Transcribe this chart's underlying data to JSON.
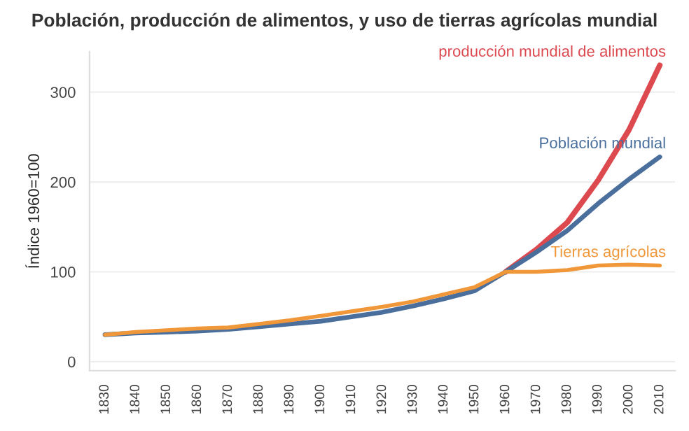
{
  "chart_data": {
    "type": "line",
    "title": "Población, producción de alimentos, y uso de tierras agrícolas mundial",
    "ylabel": "Índice 1960=100",
    "x": [
      1830,
      1840,
      1850,
      1860,
      1870,
      1880,
      1890,
      1900,
      1910,
      1920,
      1930,
      1940,
      1950,
      1960,
      1970,
      1980,
      1990,
      2000,
      2010
    ],
    "series": [
      {
        "name": "producción mundial de alimentos",
        "color": "#dc4a50",
        "values": [
          null,
          null,
          null,
          null,
          null,
          null,
          null,
          null,
          null,
          null,
          null,
          null,
          null,
          100,
          125,
          155,
          202,
          258,
          330
        ]
      },
      {
        "name": "Población mundial",
        "color": "#4a6f9c",
        "values": [
          30,
          32,
          33,
          34,
          36,
          39,
          42,
          45,
          50,
          55,
          62,
          70,
          79,
          100,
          122,
          146,
          176,
          203,
          228
        ]
      },
      {
        "name": "Tierras agrícolas",
        "color": "#f0973a",
        "values": [
          30,
          33,
          35,
          37,
          38,
          42,
          46,
          51,
          56,
          61,
          67,
          75,
          83,
          100,
          100,
          102,
          107,
          108,
          107
        ]
      }
    ],
    "xlim": [
      1825,
      2015
    ],
    "ylim": [
      -10,
      345
    ],
    "xticks": [
      1830,
      1840,
      1850,
      1860,
      1870,
      1880,
      1890,
      1900,
      1910,
      1920,
      1930,
      1940,
      1950,
      1960,
      1970,
      1980,
      1990,
      2000,
      2010
    ],
    "yticks": [
      0,
      100,
      200,
      300
    ],
    "grid": "y",
    "legend": false,
    "marker": "none",
    "line_style": "solid"
  }
}
